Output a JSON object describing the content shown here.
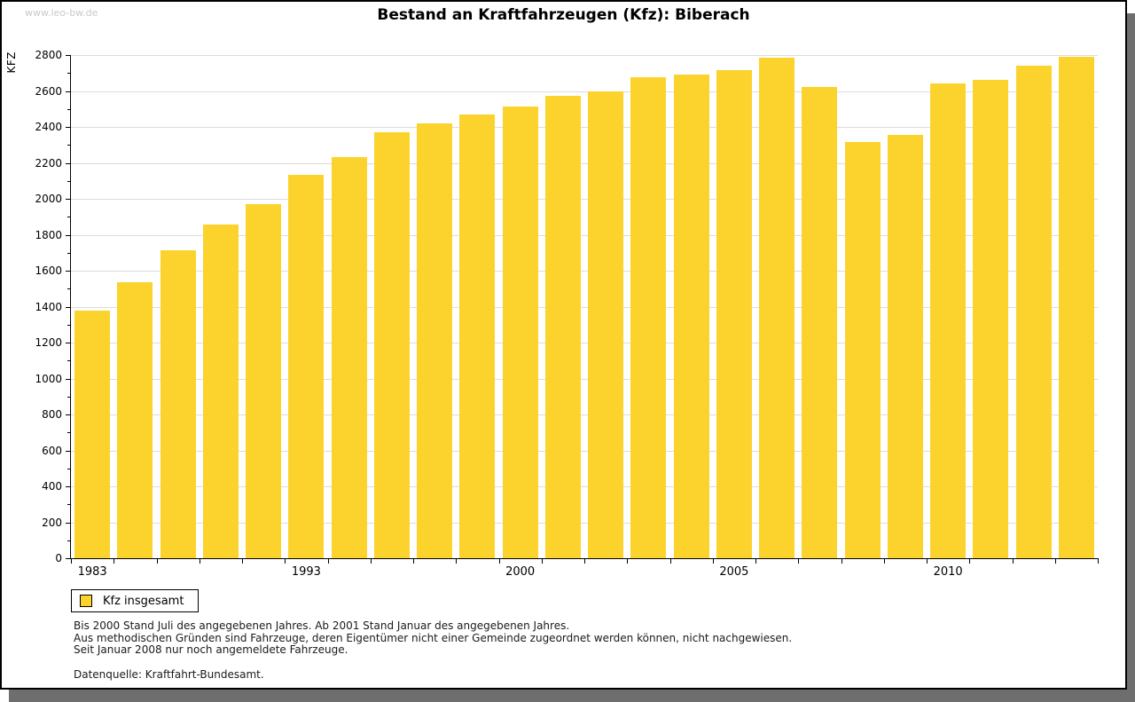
{
  "watermark": "www.leo-bw.de",
  "chart_data": {
    "type": "bar",
    "title": "Bestand an Kraftfahrzeugen (Kfz): Biberach",
    "xlabel": "",
    "ylabel": "KFZ",
    "ylim": [
      0,
      2800
    ],
    "y_major_step": 200,
    "y_minor_step": 100,
    "grid": "horizontal-major",
    "bar_color": "#fcd32d",
    "values": [
      1380,
      1535,
      1715,
      1855,
      1970,
      2135,
      2230,
      2370,
      2420,
      2470,
      2515,
      2575,
      2600,
      2675,
      2690,
      2715,
      2785,
      2620,
      2315,
      2355,
      2640,
      2660,
      2740,
      2790
    ],
    "xticks": [
      {
        "index": 0,
        "label": "1983"
      },
      {
        "index": 5,
        "label": "1993"
      },
      {
        "index": 10,
        "label": "2000"
      },
      {
        "index": 15,
        "label": "2005"
      },
      {
        "index": 20,
        "label": "2010"
      }
    ],
    "legend_position": "bottom-left",
    "legend": [
      {
        "label": "Kfz insgesamt",
        "color": "#fcd32d"
      }
    ]
  },
  "notes": [
    "Bis 2000 Stand Juli des angegebenen Jahres. Ab 2001 Stand Januar des angegebenen Jahres.",
    "Aus methodischen Gründen sind Fahrzeuge, deren Eigentümer nicht einer Gemeinde zugeordnet werden können, nicht nachgewiesen.",
    "Seit Januar 2008 nur noch angemeldete Fahrzeuge."
  ],
  "source": "Datenquelle: Kraftfahrt-Bundesamt."
}
